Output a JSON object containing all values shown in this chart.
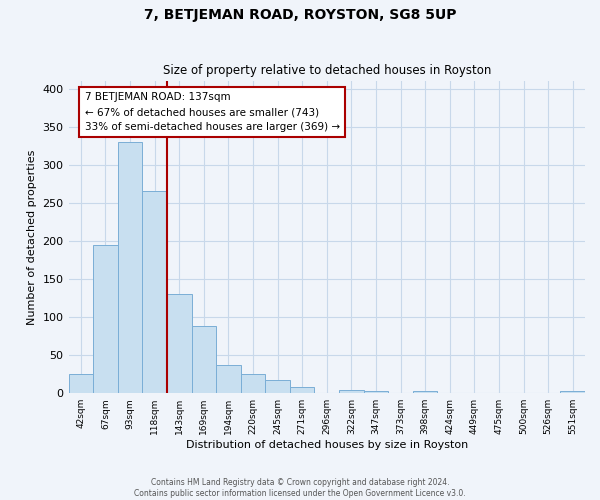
{
  "title": "7, BETJEMAN ROAD, ROYSTON, SG8 5UP",
  "subtitle": "Size of property relative to detached houses in Royston",
  "xlabel": "Distribution of detached houses by size in Royston",
  "ylabel": "Number of detached properties",
  "bin_labels": [
    "42sqm",
    "67sqm",
    "93sqm",
    "118sqm",
    "143sqm",
    "169sqm",
    "194sqm",
    "220sqm",
    "245sqm",
    "271sqm",
    "296sqm",
    "322sqm",
    "347sqm",
    "373sqm",
    "398sqm",
    "424sqm",
    "449sqm",
    "475sqm",
    "500sqm",
    "526sqm",
    "551sqm"
  ],
  "bar_values": [
    25,
    195,
    330,
    265,
    130,
    88,
    37,
    25,
    17,
    8,
    0,
    4,
    3,
    0,
    3,
    0,
    0,
    0,
    0,
    0,
    3
  ],
  "bar_color": "#c8dff0",
  "bar_edgecolor": "#7aaed6",
  "vline_x_index": 3.5,
  "vline_color": "#aa0000",
  "annotation_title": "7 BETJEMAN ROAD: 137sqm",
  "annotation_line1": "← 67% of detached houses are smaller (743)",
  "annotation_line2": "33% of semi-detached houses are larger (369) →",
  "annotation_box_edgecolor": "#aa0000",
  "ylim": [
    0,
    410
  ],
  "yticks": [
    0,
    50,
    100,
    150,
    200,
    250,
    300,
    350,
    400
  ],
  "footer1": "Contains HM Land Registry data © Crown copyright and database right 2024.",
  "footer2": "Contains public sector information licensed under the Open Government Licence v3.0.",
  "bg_color": "#f0f4fa",
  "grid_color": "#c8d8ea"
}
